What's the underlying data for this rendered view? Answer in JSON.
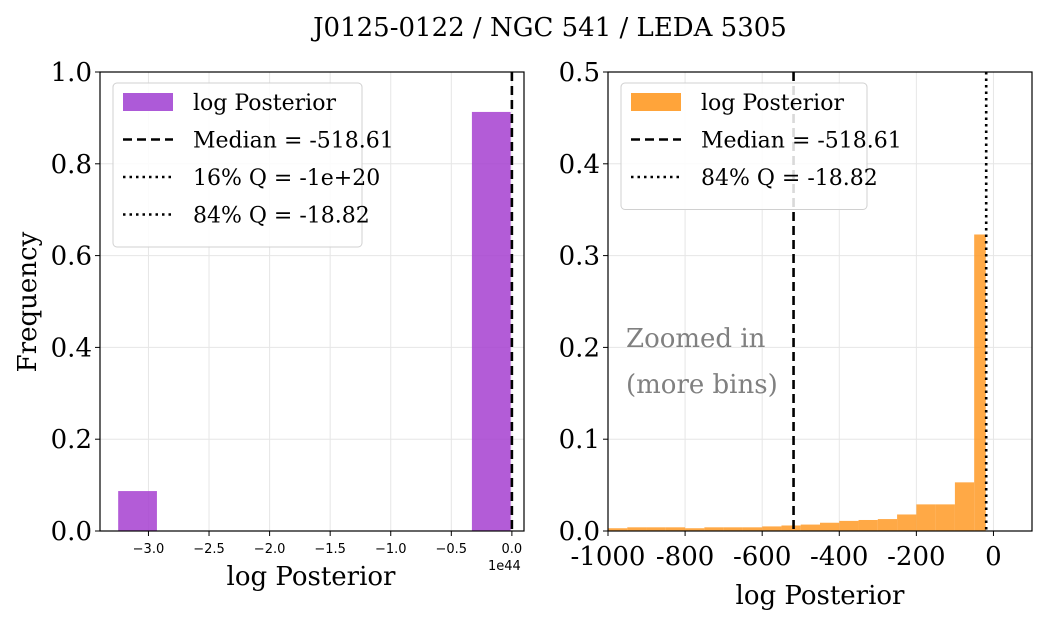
{
  "figure": {
    "title": "J0125-0122 / NGC 541 / LEDA 5305"
  },
  "chart_data": [
    {
      "type": "bar",
      "panel": "left",
      "xlabel": "log Posterior",
      "ylabel": "Frequency",
      "x_offset_label": "1e44",
      "xlim": [
        -3.4,
        0.1
      ],
      "ylim": [
        0.0,
        1.0
      ],
      "x_tick_labels": [
        "−3.0",
        "−2.5",
        "−2.0",
        "−1.5",
        "−1.0",
        "−0.5",
        "0.0"
      ],
      "x_ticks": [
        -3.0,
        -2.5,
        -2.0,
        -1.5,
        -1.0,
        -0.5,
        0.0
      ],
      "y_tick_labels": [
        "0.0",
        "0.2",
        "0.4",
        "0.6",
        "0.8",
        "1.0"
      ],
      "y_ticks": [
        0.0,
        0.2,
        0.4,
        0.6,
        0.8,
        1.0
      ],
      "grid": true,
      "bins": [
        {
          "x0": -3.25,
          "x1": -2.93,
          "value": 0.087
        },
        {
          "x0": -0.33,
          "x1": -0.01,
          "value": 0.913
        }
      ],
      "bar_color": "#a640d0",
      "vlines": [
        {
          "x": 0.0,
          "style": "dashed",
          "color": "#000000"
        }
      ],
      "legend": {
        "position": "top-left",
        "entries": [
          {
            "label": "log Posterior",
            "kind": "patch",
            "color": "#ad5ad8"
          },
          {
            "label": "Median = -518.61",
            "kind": "dashed"
          },
          {
            "label": "16% Q = -1e+20",
            "kind": "dotted"
          },
          {
            "label": "84% Q = -18.82",
            "kind": "dotted"
          }
        ]
      }
    },
    {
      "type": "bar",
      "panel": "right",
      "xlabel": "log Posterior",
      "xlim": [
        -1000,
        100
      ],
      "ylim": [
        0.0,
        0.5
      ],
      "x_tick_labels": [
        "-1000",
        "-800",
        "-600",
        "-400",
        "-200",
        "0"
      ],
      "x_ticks": [
        -1000,
        -800,
        -600,
        -400,
        -200,
        0
      ],
      "y_tick_labels": [
        "0.0",
        "0.1",
        "0.2",
        "0.3",
        "0.4",
        "0.5"
      ],
      "y_ticks": [
        0.0,
        0.1,
        0.2,
        0.3,
        0.4,
        0.5
      ],
      "grid": true,
      "bar_color": "#ff9a26",
      "bins": [
        {
          "x0": -1000,
          "x1": -950,
          "value": 0.003
        },
        {
          "x0": -950,
          "x1": -900,
          "value": 0.004
        },
        {
          "x0": -900,
          "x1": -850,
          "value": 0.004
        },
        {
          "x0": -850,
          "x1": -800,
          "value": 0.004
        },
        {
          "x0": -800,
          "x1": -750,
          "value": 0.003
        },
        {
          "x0": -750,
          "x1": -700,
          "value": 0.004
        },
        {
          "x0": -700,
          "x1": -650,
          "value": 0.004
        },
        {
          "x0": -650,
          "x1": -600,
          "value": 0.004
        },
        {
          "x0": -600,
          "x1": -550,
          "value": 0.005
        },
        {
          "x0": -550,
          "x1": -500,
          "value": 0.006
        },
        {
          "x0": -500,
          "x1": -450,
          "value": 0.007
        },
        {
          "x0": -450,
          "x1": -400,
          "value": 0.009
        },
        {
          "x0": -400,
          "x1": -350,
          "value": 0.011
        },
        {
          "x0": -350,
          "x1": -300,
          "value": 0.012
        },
        {
          "x0": -300,
          "x1": -250,
          "value": 0.013
        },
        {
          "x0": -250,
          "x1": -200,
          "value": 0.018
        },
        {
          "x0": -200,
          "x1": -150,
          "value": 0.029
        },
        {
          "x0": -150,
          "x1": -100,
          "value": 0.029
        },
        {
          "x0": -100,
          "x1": -50,
          "value": 0.053
        },
        {
          "x0": -50,
          "x1": -20,
          "value": 0.323
        }
      ],
      "vlines": [
        {
          "x": -518.61,
          "style": "dashed",
          "color": "#000000"
        },
        {
          "x": -18.82,
          "style": "dotted",
          "color": "#000000"
        }
      ],
      "annotation": [
        "Zoomed in",
        "(more bins)"
      ],
      "annotation_color": "#808080",
      "legend": {
        "position": "top-left",
        "entries": [
          {
            "label": "log Posterior",
            "kind": "patch",
            "color": "#ffa43a"
          },
          {
            "label": "Median = -518.61",
            "kind": "dashed"
          },
          {
            "label": "84% Q = -18.82",
            "kind": "dotted"
          }
        ]
      }
    }
  ]
}
